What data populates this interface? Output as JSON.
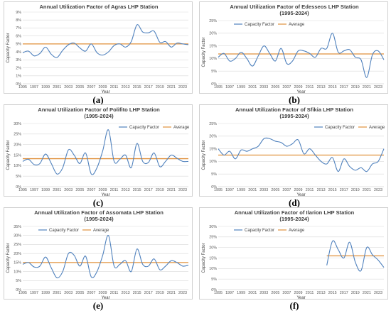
{
  "colors": {
    "series": "#4f81bd",
    "average": "#e0913c",
    "grid": "#d9d9d9",
    "axis": "#bfbfbf"
  },
  "chart_data": [
    {
      "type": "line",
      "caption": "(a)",
      "title": "Annual Utilization Factor of Agras LHP Station",
      "title_line2": "",
      "xlabel": "Year",
      "ylabel": "Capacity Factor",
      "xlim": [
        1995,
        2024
      ],
      "ylim": [
        0,
        9
      ],
      "ystep": 1,
      "yunit": "%",
      "xticks": [
        "1995",
        "1997",
        "1999",
        "2001",
        "2003",
        "2005",
        "2007",
        "2009",
        "2011",
        "2013",
        "2015",
        "2017",
        "2019",
        "2021",
        "2023"
      ],
      "legend": "none",
      "series": [
        {
          "x": [
            1995,
            1996,
            1997,
            1998,
            1999,
            2000,
            2001,
            2002,
            2003,
            2004,
            2005,
            2006,
            2007,
            2008,
            2009,
            2010,
            2011,
            2012,
            2013,
            2014,
            2015,
            2016,
            2017,
            2018,
            2019,
            2020,
            2021,
            2022,
            2023,
            2024
          ],
          "values": [
            3.9,
            4.1,
            3.5,
            3.8,
            4.6,
            3.7,
            3.3,
            4.2,
            4.9,
            5.1,
            4.5,
            4.1,
            5.0,
            3.9,
            3.6,
            4.0,
            4.8,
            5.0,
            4.6,
            5.3,
            7.4,
            6.5,
            6.4,
            6.6,
            5.2,
            5.3,
            4.6,
            5.1,
            5.0,
            4.9
          ]
        }
      ],
      "average": 5.0,
      "series_label": "",
      "average_label": ""
    },
    {
      "type": "line",
      "caption": "(b)",
      "title": "Annual Utilization Factor of Edesseos LHP Station",
      "title_line2": "(1995-2024)",
      "xlabel": "Year",
      "ylabel": "Capacity Factor",
      "xlim": [
        1995,
        2024
      ],
      "ylim": [
        0,
        25
      ],
      "ystep": 5,
      "yunit": "%",
      "xticks": [
        "1995",
        "1997",
        "1999",
        "2001",
        "2003",
        "2005",
        "2007",
        "2009",
        "2011",
        "2013",
        "2015",
        "2017",
        "2019",
        "2021",
        "2023"
      ],
      "legend": "top-left",
      "series": [
        {
          "x": [
            1995,
            1996,
            1997,
            1998,
            1999,
            2000,
            2001,
            2002,
            2003,
            2004,
            2005,
            2006,
            2007,
            2008,
            2009,
            2010,
            2011,
            2012,
            2013,
            2014,
            2015,
            2016,
            2017,
            2018,
            2019,
            2020,
            2021,
            2022,
            2023,
            2024
          ],
          "values": [
            10.5,
            12.0,
            9.0,
            10.0,
            12.5,
            10.0,
            7.0,
            11.0,
            15.0,
            12.0,
            9.0,
            14.0,
            8.0,
            9.0,
            13.0,
            13.0,
            12.0,
            10.5,
            14.0,
            14.0,
            20.0,
            12.5,
            13.0,
            13.5,
            10.5,
            9.5,
            2.5,
            11.5,
            13.0,
            9.5
          ]
        }
      ],
      "average": 11.8,
      "series_label": "Capacity Factor",
      "average_label": "Average"
    },
    {
      "type": "line",
      "caption": "(c)",
      "title": "Annual Utilization Factor of Polifito LHP Station",
      "title_line2": "(1995-2024)",
      "xlabel": "Year",
      "ylabel": "Capacity Factor",
      "xlim": [
        1995,
        2024
      ],
      "ylim": [
        0,
        30
      ],
      "ystep": 5,
      "yunit": "%",
      "xticks": [
        "1995",
        "1997",
        "1999",
        "2001",
        "2003",
        "2005",
        "2007",
        "2009",
        "2011",
        "2013",
        "2015",
        "2017",
        "2019",
        "2021",
        "2023"
      ],
      "legend": "top-right",
      "series": [
        {
          "x": [
            1995,
            1996,
            1997,
            1998,
            1999,
            2000,
            2001,
            2002,
            2003,
            2004,
            2005,
            2006,
            2007,
            2008,
            2009,
            2010,
            2011,
            2012,
            2013,
            2014,
            2015,
            2016,
            2017,
            2018,
            2019,
            2020,
            2021,
            2022,
            2023,
            2024
          ],
          "values": [
            12.0,
            13.0,
            10.5,
            11.0,
            15.5,
            11.0,
            6.0,
            9.0,
            17.5,
            15.0,
            11.0,
            16.0,
            6.0,
            9.0,
            17.0,
            27.0,
            12.0,
            13.0,
            15.0,
            9.0,
            20.5,
            12.0,
            11.5,
            16.0,
            9.5,
            12.0,
            15.0,
            13.5,
            12.0,
            12.0
          ]
        }
      ],
      "average": 13.3,
      "series_label": "Capacity Factor",
      "average_label": "Average"
    },
    {
      "type": "line",
      "caption": "(d)",
      "title": "Annual Utilization Factor of Sfikia LHP Station",
      "title_line2": "(1995-2024)",
      "xlabel": "Year",
      "ylabel": "Capacity Factor",
      "xlim": [
        1995,
        2024
      ],
      "ylim": [
        0,
        25
      ],
      "ystep": 5,
      "yunit": "%",
      "xticks": [
        "1995",
        "1997",
        "1999",
        "2001",
        "2003",
        "2005",
        "2007",
        "2009",
        "2011",
        "2013",
        "2015",
        "2017",
        "2019",
        "2021",
        "2023"
      ],
      "legend": "top-right",
      "series": [
        {
          "x": [
            1995,
            1996,
            1997,
            1998,
            1999,
            2000,
            2001,
            2002,
            2003,
            2004,
            2005,
            2006,
            2007,
            2008,
            2009,
            2010,
            2011,
            2012,
            2013,
            2014,
            2015,
            2016,
            2017,
            2018,
            2019,
            2020,
            2021,
            2022,
            2023,
            2024
          ],
          "values": [
            15.0,
            12.5,
            14.0,
            11.0,
            14.5,
            14.0,
            15.0,
            16.0,
            19.0,
            19.0,
            18.0,
            17.5,
            16.0,
            17.0,
            18.5,
            13.0,
            15.0,
            12.5,
            10.0,
            9.0,
            11.5,
            6.0,
            11.0,
            8.0,
            6.5,
            7.5,
            6.0,
            9.0,
            10.0,
            15.0
          ]
        }
      ],
      "average": 12.5,
      "series_label": "Capacity Factor",
      "average_label": "Average"
    },
    {
      "type": "line",
      "caption": "(e)",
      "title": "Annual Utilization Factor of Assomata LHP Station",
      "title_line2": "(1995-2024)",
      "xlabel": "Year",
      "ylabel": "Capacity Factor",
      "xlim": [
        1995,
        2024
      ],
      "ylim": [
        0,
        35
      ],
      "ystep": 5,
      "yunit": "%",
      "xticks": [
        "1995",
        "1997",
        "1999",
        "2001",
        "2003",
        "2005",
        "2007",
        "2009",
        "2011",
        "2013",
        "2015",
        "2017",
        "2019",
        "2021",
        "2023"
      ],
      "legend": "top-left",
      "series": [
        {
          "x": [
            1995,
            1996,
            1997,
            1998,
            1999,
            2000,
            2001,
            2002,
            2003,
            2004,
            2005,
            2006,
            2007,
            2008,
            2009,
            2010,
            2011,
            2012,
            2013,
            2014,
            2015,
            2016,
            2017,
            2018,
            2019,
            2020,
            2021,
            2022,
            2023,
            2024
          ],
          "values": [
            14.0,
            15.0,
            12.5,
            13.0,
            18.0,
            12.0,
            6.5,
            10.0,
            20.0,
            19.0,
            13.0,
            18.5,
            7.0,
            10.0,
            19.0,
            30.0,
            13.0,
            14.0,
            16.0,
            10.0,
            22.5,
            14.0,
            13.0,
            17.0,
            11.0,
            13.0,
            16.0,
            15.0,
            13.0,
            13.5
          ]
        }
      ],
      "average": 15.0,
      "series_label": "Capacity Factor",
      "average_label": "Average"
    },
    {
      "type": "line",
      "caption": "(f)",
      "title": "Annual Utilization Factor of Ilarion LHP Station",
      "title_line2": "(1995-2024)",
      "xlabel": "Year",
      "ylabel": "Capacity Factor",
      "xlim": [
        1995,
        2024
      ],
      "ylim": [
        0,
        30
      ],
      "ystep": 5,
      "yunit": "%",
      "xticks": [
        "1995",
        "1997",
        "1999",
        "2001",
        "2003",
        "2005",
        "2007",
        "2009",
        "2011",
        "2013",
        "2015",
        "2017",
        "2019",
        "2021",
        "2023"
      ],
      "legend": "top-left",
      "series": [
        {
          "x": [
            2014,
            2015,
            2016,
            2017,
            2018,
            2019,
            2020,
            2021,
            2022,
            2023,
            2024
          ],
          "values": [
            11.5,
            23.0,
            19.0,
            15.0,
            22.5,
            13.0,
            9.0,
            20.0,
            16.5,
            14.0,
            10.5
          ]
        }
      ],
      "average": 16.0,
      "average_from": 2014,
      "series_label": "Capacity Factor",
      "average_label": "Average"
    }
  ]
}
